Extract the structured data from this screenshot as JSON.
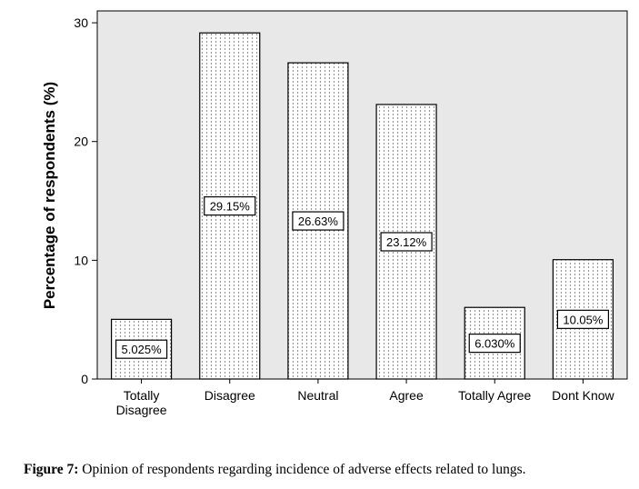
{
  "chart_data": {
    "type": "bar",
    "categories": [
      "Totally Disagree",
      "Disagree",
      "Neutral",
      "Agree",
      "Totally Agree",
      "Dont Know"
    ],
    "category_lines": [
      [
        "Totally",
        "Disagree"
      ],
      [
        "Disagree"
      ],
      [
        "Neutral"
      ],
      [
        "Agree"
      ],
      [
        "Totally Agree"
      ],
      [
        "Dont Know"
      ]
    ],
    "values": [
      5.025,
      29.15,
      26.63,
      23.12,
      6.03,
      10.05
    ],
    "data_labels": [
      "5.025%",
      "29.15%",
      "26.63%",
      "23.12%",
      "6.030%",
      "10.05%"
    ],
    "ylabel": "Percentage of respondents (%)",
    "xlabel": "",
    "ylim": [
      0,
      31
    ],
    "yticks": [
      0,
      10,
      20,
      30
    ],
    "grid": false,
    "colors": {
      "plot_background": "#e8e8e8",
      "bar_fill": "#ffffff",
      "bar_dots": "#666666",
      "stroke": "#000000"
    }
  },
  "caption": {
    "label": "Figure 7:",
    "text": " Opinion of respondents regarding incidence of adverse effects related to lungs."
  }
}
